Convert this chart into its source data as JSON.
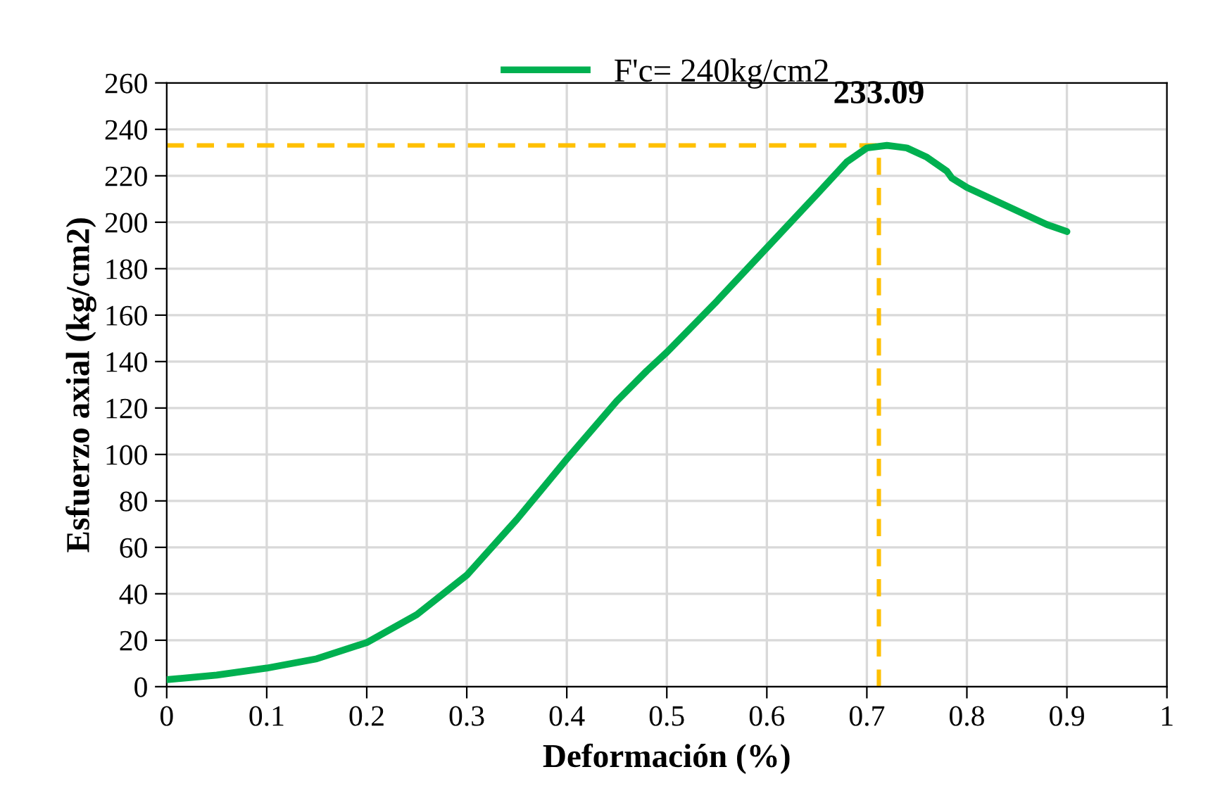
{
  "chart_data": {
    "type": "line",
    "xlabel": "Deformación (%)",
    "ylabel": "Esfuerzo axial (kg/cm2)",
    "x": [
      0,
      0.05,
      0.1,
      0.15,
      0.2,
      0.25,
      0.3,
      0.35,
      0.4,
      0.45,
      0.48,
      0.5,
      0.55,
      0.6,
      0.65,
      0.68,
      0.7,
      0.72,
      0.74,
      0.76,
      0.78,
      0.785,
      0.8,
      0.85,
      0.88,
      0.9
    ],
    "series": [
      {
        "name": "F'c= 240kg/cm2",
        "color": "#00b050",
        "values": [
          3,
          5,
          8,
          12,
          19,
          31,
          48,
          72,
          98,
          123,
          136,
          144,
          166,
          189,
          212,
          226,
          232,
          233.09,
          232,
          228,
          222,
          219,
          215,
          205,
          199,
          196
        ]
      }
    ],
    "xlim": [
      0,
      1
    ],
    "xticks": [
      0,
      0.1,
      0.2,
      0.3,
      0.4,
      0.5,
      0.6,
      0.7,
      0.8,
      0.9,
      1
    ],
    "ylim": [
      0,
      260
    ],
    "yticks": [
      0,
      20,
      40,
      60,
      80,
      100,
      120,
      140,
      160,
      180,
      200,
      220,
      240,
      260
    ],
    "ref_lines": [
      {
        "axis": "x",
        "value": 0.712,
        "color": "#ffc000",
        "line_style": "dashed"
      },
      {
        "axis": "y",
        "value": 233.09,
        "color": "#ffc000",
        "line_style": "dashed"
      }
    ],
    "annotations": [
      {
        "text": "233.09",
        "x": 0.712,
        "y": 233.09
      }
    ],
    "grid": true,
    "legend": "top",
    "marker": "none",
    "line_style": "solid"
  }
}
